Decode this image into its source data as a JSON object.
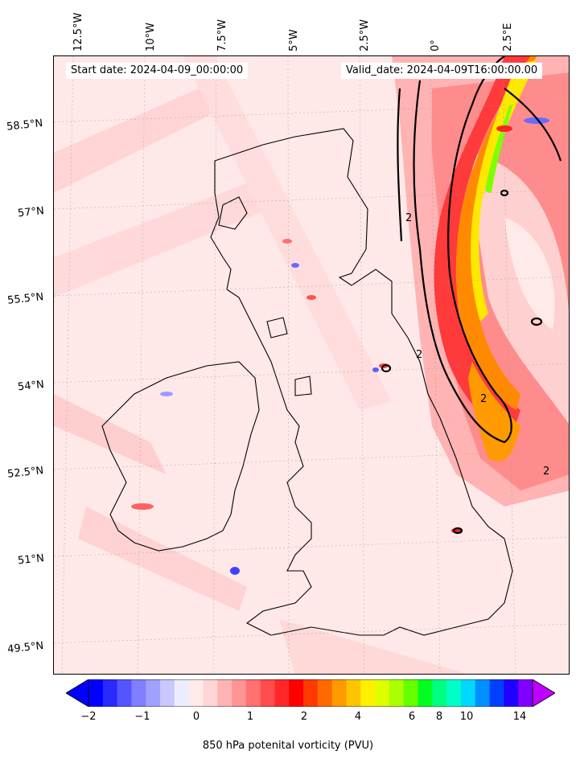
{
  "map": {
    "start_date": "Start date: 2024-04-09_00:00:00",
    "valid_date": "Valid_date: 2024-04-09T16:00:00.00",
    "lon_labels": [
      "12.5°W",
      "10°W",
      "7.5°W",
      "5°W",
      "2.5°W",
      "0°",
      "2.5°E"
    ],
    "lat_labels": [
      "58.5°N",
      "57°N",
      "55.5°N",
      "54°N",
      "52.5°N",
      "51°N",
      "49.5°N"
    ],
    "contour_label": "2"
  },
  "colorbar": {
    "title": "850 hPa potenital vorticity (PVU)",
    "ticks": [
      "−2",
      "−1",
      "0",
      "1",
      "2",
      "4",
      "6",
      "8",
      "10",
      "14"
    ],
    "colors": [
      "#0000ff",
      "#2a2aff",
      "#5555ff",
      "#7f7fff",
      "#a0a0ff",
      "#c8c8ff",
      "#ececff",
      "#ffeaea",
      "#ffd5d5",
      "#ffb4b4",
      "#ff9494",
      "#ff7070",
      "#ff4c4c",
      "#ff2828",
      "#ff0000",
      "#ff3a00",
      "#ff6a00",
      "#ff9a00",
      "#ffc400",
      "#fff000",
      "#ddff00",
      "#aaff00",
      "#66ff00",
      "#00ff20",
      "#00ff80",
      "#00ffc8",
      "#00d8ff",
      "#0090ff",
      "#0040ff",
      "#2000ff",
      "#8000ff"
    ],
    "extend_min_color": "#0000ff",
    "extend_max_color": "#c000ff"
  }
}
